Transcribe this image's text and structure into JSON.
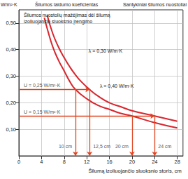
{
  "chart_data": {
    "type": "line",
    "title": "Šilumos nuostolių mažėjimas dėl šilumą izoliuojančio sluoksnio įrengimo",
    "ylabel": "W/m²·K",
    "headers": [
      "Šilumos laidumo koeficientas",
      "Santykiniai šilumos nuostoliai"
    ],
    "xlabel": "Šilumą izoliuojančio sluoksnio storis, cm",
    "xlim": [
      0,
      29
    ],
    "xticks": [
      0,
      4,
      8,
      12,
      16,
      20,
      24,
      28
    ],
    "ylim": [
      0,
      0.55
    ],
    "yticks": [
      {
        "value": 0.1,
        "label": "0,10"
      },
      {
        "value": 0.2,
        "label": "0,20"
      },
      {
        "value": 0.3,
        "label": "0,30"
      },
      {
        "value": 0.4,
        "label": "0,40"
      },
      {
        "value": 0.5,
        "label": "0,50"
      }
    ],
    "grid": true,
    "series": [
      {
        "name": "λ = 0,30 W/m·K",
        "color": "#d9252e",
        "x": [
          5,
          6,
          7,
          8,
          9,
          10,
          11,
          12.5,
          14,
          16,
          18,
          20,
          24,
          28
        ],
        "values": [
          0.53,
          0.46,
          0.41,
          0.37,
          0.335,
          0.305,
          0.28,
          0.25,
          0.225,
          0.2,
          0.185,
          0.17,
          0.15,
          0.13
        ]
      },
      {
        "name": "λ = 0,40 W/m·K",
        "color": "#d9252e",
        "x": [
          4.5,
          5,
          6,
          7,
          8,
          9,
          10,
          12,
          14,
          16,
          18,
          20,
          24,
          28
        ],
        "values": [
          0.52,
          0.48,
          0.41,
          0.36,
          0.32,
          0.28,
          0.25,
          0.215,
          0.19,
          0.175,
          0.16,
          0.15,
          0.125,
          0.105
        ]
      }
    ],
    "annotations": [
      {
        "u": 0.25,
        "label": "U = 0,25 W/m²·K",
        "color": "#e0431f",
        "thicknesses": [
          10,
          12.5
        ],
        "thickness_labels": [
          "10 cm",
          "12,5 cm"
        ]
      },
      {
        "u": 0.15,
        "label": "U = 0,15 W/m²·K",
        "color": "#e0431f",
        "thicknesses": [
          20,
          24
        ],
        "thickness_labels": [
          "20 cm",
          "24 cm"
        ]
      }
    ]
  }
}
